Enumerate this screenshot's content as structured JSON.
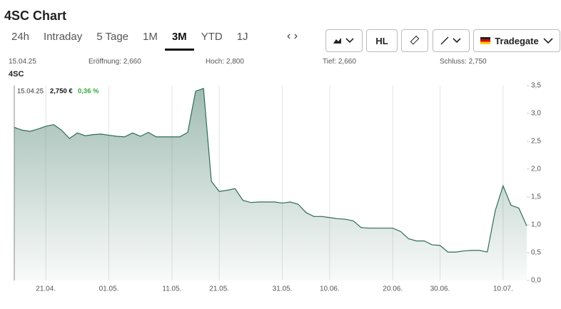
{
  "header": {
    "title": "4SC Chart",
    "tabs": [
      "24h",
      "Intraday",
      "5 Tage",
      "1M",
      "3M",
      "YTD",
      "1J"
    ],
    "active_tab": "3M",
    "hl": "HL",
    "exchange": "Tradegate"
  },
  "info": {
    "date": "15.04.25",
    "open": "Eröffnung: 2,660",
    "high": "Hoch: 2,800",
    "low": "Tief: 2,660",
    "close": "Schluss: 2,750"
  },
  "instrument": "4SC",
  "tooltip": {
    "date": "15.04.25",
    "price": "2,750 €",
    "change": "0,36 %"
  },
  "chart_data": {
    "type": "area",
    "color": "#2e6b58",
    "categories": [
      null,
      null,
      null,
      null,
      "21.04.",
      null,
      null,
      null,
      null,
      null,
      null,
      null,
      "01.05.",
      null,
      null,
      null,
      null,
      null,
      null,
      null,
      "11.05.",
      null,
      null,
      null,
      null,
      null,
      "21.05.",
      null,
      null,
      null,
      null,
      null,
      null,
      null,
      "31.05.",
      null,
      null,
      null,
      null,
      null,
      "10.06.",
      null,
      null,
      null,
      null,
      null,
      null,
      null,
      "20.06.",
      null,
      null,
      null,
      null,
      null,
      "30.06.",
      null,
      null,
      null,
      null,
      null,
      null,
      null,
      "10.07.",
      null,
      null,
      null
    ],
    "series": [
      {
        "name": "4SC",
        "color": "#2e6b58",
        "values": [
          2.75,
          2.7,
          2.68,
          2.72,
          2.77,
          2.8,
          2.7,
          2.55,
          2.65,
          2.6,
          2.62,
          2.63,
          2.61,
          2.59,
          2.58,
          2.65,
          2.59,
          2.66,
          2.58,
          2.58,
          2.58,
          2.58,
          2.66,
          3.4,
          3.45,
          1.78,
          1.6,
          1.62,
          1.65,
          1.44,
          1.4,
          1.41,
          1.41,
          1.41,
          1.39,
          1.41,
          1.37,
          1.22,
          1.15,
          1.15,
          1.13,
          1.11,
          1.1,
          1.07,
          0.95,
          0.94,
          0.94,
          0.94,
          0.94,
          0.88,
          0.75,
          0.71,
          0.71,
          0.64,
          0.63,
          0.51,
          0.51,
          0.53,
          0.54,
          0.54,
          0.51,
          1.25,
          1.7,
          1.35,
          1.3,
          0.98
        ]
      }
    ],
    "ylim": [
      0,
      3.5
    ],
    "yticks": [
      {
        "value": 0,
        "label": "0,0"
      },
      {
        "value": 0.5,
        "label": "0,5"
      },
      {
        "value": 1,
        "label": "1,0"
      },
      {
        "value": 1.5,
        "label": "1,5"
      },
      {
        "value": 2,
        "label": "2,0"
      },
      {
        "value": 2.5,
        "label": "2,5"
      },
      {
        "value": 3,
        "label": "3,0"
      },
      {
        "value": 3.5,
        "label": "3,5"
      }
    ],
    "grid": true
  }
}
